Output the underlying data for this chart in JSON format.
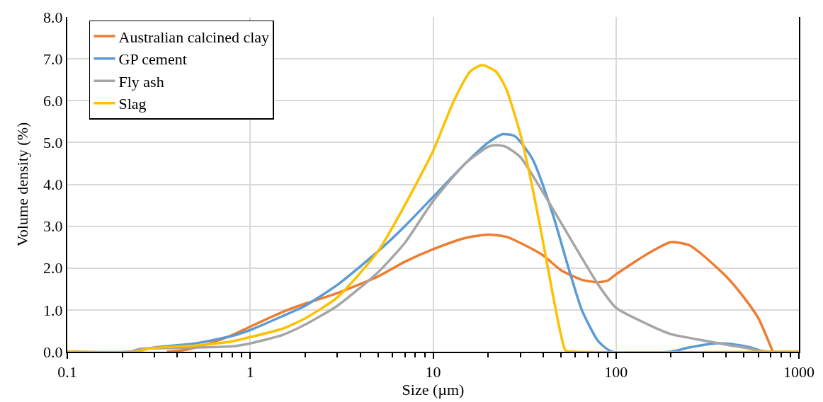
{
  "chart_data": {
    "type": "line",
    "xlabel": "Size (µm)",
    "ylabel": "Volume density (%)",
    "log": "x",
    "grid": true,
    "legend": "top left",
    "line_style": "solid",
    "marker": "none",
    "xlim": [
      0.1,
      1000
    ],
    "xticks": [
      0.1,
      1,
      10,
      100,
      1000
    ],
    "ylim": [
      0,
      8
    ],
    "yticks": [
      {
        "value": 0,
        "label": "0.0"
      },
      {
        "value": 1,
        "label": "1.0"
      },
      {
        "value": 2,
        "label": "2.0"
      },
      {
        "value": 3,
        "label": "3.0"
      },
      {
        "value": 4,
        "label": "4.0"
      },
      {
        "value": 5,
        "label": "5.0"
      },
      {
        "value": 6,
        "label": "6.0"
      },
      {
        "value": 7,
        "label": "7.0"
      },
      {
        "value": 8,
        "label": "8.0"
      }
    ],
    "series": [
      {
        "name": "Australian calcined clay",
        "color": "#ed7d31",
        "x": [
          0.35,
          0.45,
          0.6,
          0.8,
          1,
          1.5,
          2,
          3,
          5,
          7,
          10,
          15,
          20,
          25,
          30,
          40,
          50,
          65,
          80,
          90,
          100,
          150,
          200,
          250,
          300,
          400,
          500,
          600,
          720
        ],
        "values": [
          0,
          0.05,
          0.2,
          0.4,
          0.6,
          0.95,
          1.15,
          1.4,
          1.8,
          2.15,
          2.45,
          2.72,
          2.8,
          2.75,
          2.6,
          2.3,
          1.95,
          1.72,
          1.66,
          1.7,
          1.85,
          2.35,
          2.62,
          2.55,
          2.3,
          1.8,
          1.3,
          0.8,
          0
        ]
      },
      {
        "name": "GP cement",
        "color": "#5b9bd5",
        "x": [
          0.1,
          0.22,
          0.3,
          0.5,
          0.8,
          1,
          1.5,
          2,
          3,
          5,
          7,
          10,
          15,
          20,
          24,
          28,
          35,
          45,
          55,
          65,
          80,
          95,
          200,
          250,
          350,
          450,
          550,
          650,
          1000
        ],
        "values": [
          0,
          0,
          0.1,
          0.2,
          0.38,
          0.52,
          0.85,
          1.1,
          1.6,
          2.4,
          3.0,
          3.7,
          4.5,
          5.0,
          5.2,
          5.15,
          4.6,
          3.3,
          2.0,
          1.0,
          0.25,
          0,
          0,
          0.1,
          0.2,
          0.17,
          0.1,
          0,
          0
        ]
      },
      {
        "name": "Fly ash",
        "color": "#a5a5a5",
        "x": [
          0.1,
          0.22,
          0.25,
          0.5,
          0.8,
          1,
          1.5,
          2,
          3,
          5,
          7,
          10,
          15,
          20,
          22,
          25,
          30,
          40,
          60,
          80,
          100,
          150,
          200,
          300,
          400,
          500,
          600,
          700,
          1000
        ],
        "values": [
          0,
          0,
          0.07,
          0.1,
          0.13,
          0.2,
          0.4,
          0.65,
          1.1,
          1.9,
          2.6,
          3.6,
          4.5,
          4.9,
          4.94,
          4.9,
          4.65,
          3.8,
          2.5,
          1.6,
          1.05,
          0.65,
          0.42,
          0.27,
          0.17,
          0.1,
          0.03,
          0,
          0
        ]
      },
      {
        "name": "Slag",
        "color": "#ffc000",
        "x": [
          0.1,
          0.24,
          0.28,
          0.5,
          0.8,
          1,
          1.5,
          2,
          3,
          5,
          7,
          10,
          13,
          16,
          18.5,
          22,
          25,
          30,
          35,
          40,
          45,
          50,
          53,
          60,
          1000
        ],
        "values": [
          0,
          0,
          0.08,
          0.15,
          0.25,
          0.35,
          0.55,
          0.8,
          1.3,
          2.4,
          3.5,
          4.8,
          6.0,
          6.7,
          6.85,
          6.7,
          6.3,
          5.2,
          3.9,
          2.6,
          1.4,
          0.4,
          0.03,
          0,
          0
        ]
      }
    ]
  }
}
